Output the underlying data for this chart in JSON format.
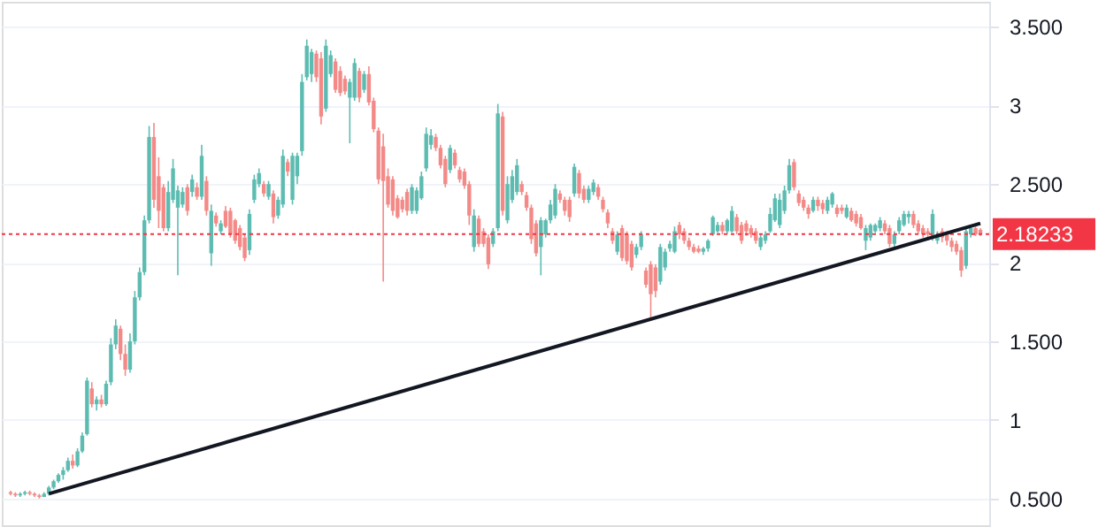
{
  "chart_data": {
    "type": "candlestick",
    "categories": [
      null,
      null,
      null,
      null,
      null,
      null,
      null,
      null,
      null,
      null,
      null,
      null,
      null,
      null,
      null,
      null,
      null,
      null,
      null,
      null,
      null,
      null,
      null,
      null,
      null,
      null,
      null,
      null,
      null,
      null,
      null,
      null,
      null,
      null,
      null,
      null,
      null,
      null,
      null,
      null,
      null,
      null,
      null,
      null,
      null,
      null,
      null,
      null,
      null,
      null,
      null,
      null,
      null,
      null,
      null,
      null,
      null,
      null,
      null,
      null,
      null,
      null,
      null,
      null,
      null,
      null,
      null,
      null,
      null,
      null,
      null,
      null,
      null,
      null,
      null,
      null,
      null,
      null,
      null,
      null,
      null,
      null,
      null,
      null,
      null,
      null,
      null,
      null,
      null,
      null,
      null,
      null,
      null,
      null,
      null,
      null,
      null,
      null,
      null,
      null,
      null,
      null,
      null,
      null,
      null,
      null,
      null,
      null,
      null,
      null,
      null,
      null,
      null,
      null,
      null,
      null,
      null,
      null,
      null,
      null,
      null,
      null,
      null,
      null,
      null,
      null,
      null,
      null,
      null,
      null,
      null,
      null,
      null,
      null,
      null,
      null,
      null,
      null,
      null,
      null,
      null,
      null,
      null,
      null,
      null,
      null,
      null,
      null,
      null,
      null,
      null,
      null,
      null,
      null,
      null,
      null,
      null,
      null,
      null,
      null,
      null,
      null,
      null,
      null,
      null,
      null,
      null,
      null,
      null,
      null,
      null,
      null,
      null,
      null,
      null,
      null,
      null,
      null,
      null,
      null,
      null,
      null,
      null,
      null,
      null,
      null,
      null,
      null,
      null,
      null,
      null,
      null,
      null,
      null,
      null,
      null,
      null,
      null,
      null,
      null,
      null,
      null,
      null,
      null
    ],
    "ohlc": [
      [
        0.54,
        0.55,
        0.52,
        0.53
      ],
      [
        0.53,
        0.54,
        0.51,
        0.52
      ],
      [
        0.52,
        0.54,
        0.51,
        0.53
      ],
      [
        0.53,
        0.55,
        0.52,
        0.54
      ],
      [
        0.54,
        0.55,
        0.52,
        0.53
      ],
      [
        0.53,
        0.54,
        0.51,
        0.52
      ],
      [
        0.52,
        0.53,
        0.5,
        0.51
      ],
      [
        0.51,
        0.54,
        0.51,
        0.53
      ],
      [
        0.53,
        0.58,
        0.52,
        0.57
      ],
      [
        0.57,
        0.62,
        0.56,
        0.61
      ],
      [
        0.61,
        0.66,
        0.6,
        0.65
      ],
      [
        0.65,
        0.7,
        0.62,
        0.68
      ],
      [
        0.68,
        0.76,
        0.67,
        0.74
      ],
      [
        0.74,
        0.78,
        0.69,
        0.71
      ],
      [
        0.71,
        0.82,
        0.7,
        0.8
      ],
      [
        0.8,
        0.92,
        0.79,
        0.9
      ],
      [
        0.91,
        1.27,
        0.9,
        1.25
      ],
      [
        1.2,
        1.24,
        1.08,
        1.1
      ],
      [
        1.1,
        1.15,
        1.06,
        1.13
      ],
      [
        1.13,
        1.16,
        1.08,
        1.1
      ],
      [
        1.1,
        1.25,
        1.09,
        1.23
      ],
      [
        1.24,
        1.52,
        1.22,
        1.48
      ],
      [
        1.48,
        1.64,
        1.45,
        1.6
      ],
      [
        1.58,
        1.6,
        1.38,
        1.42
      ],
      [
        1.42,
        1.48,
        1.28,
        1.32
      ],
      [
        1.32,
        1.55,
        1.3,
        1.5
      ],
      [
        1.5,
        1.82,
        1.48,
        1.78
      ],
      [
        1.78,
        1.97,
        1.76,
        1.94
      ],
      [
        1.94,
        2.3,
        1.92,
        2.27
      ],
      [
        2.27,
        2.87,
        2.25,
        2.8
      ],
      [
        2.8,
        2.89,
        2.35,
        2.4
      ],
      [
        2.55,
        2.67,
        2.22,
        2.33
      ],
      [
        2.48,
        2.5,
        2.2,
        2.22
      ],
      [
        2.22,
        2.52,
        2.2,
        2.45
      ],
      [
        2.4,
        2.66,
        2.38,
        2.6
      ],
      [
        2.35,
        2.49,
        1.92,
        2.46
      ],
      [
        2.37,
        2.48,
        2.35,
        2.45
      ],
      [
        2.48,
        2.5,
        2.3,
        2.33
      ],
      [
        2.45,
        2.56,
        2.42,
        2.53
      ],
      [
        2.48,
        2.51,
        2.4,
        2.42
      ],
      [
        2.42,
        2.75,
        2.4,
        2.68
      ],
      [
        2.52,
        2.55,
        2.3,
        2.33
      ],
      [
        2.06,
        2.37,
        1.98,
        2.33
      ],
      [
        2.3,
        2.32,
        2.23,
        2.25
      ],
      [
        2.2,
        2.27,
        2.18,
        2.25
      ],
      [
        2.33,
        2.36,
        2.22,
        2.23
      ],
      [
        2.33,
        2.35,
        2.16,
        2.18
      ],
      [
        2.27,
        2.28,
        2.12,
        2.14
      ],
      [
        2.22,
        2.24,
        2.08,
        2.1
      ],
      [
        2.16,
        2.18,
        2.01,
        2.03
      ],
      [
        2.08,
        2.34,
        2.05,
        2.31
      ],
      [
        2.4,
        2.56,
        2.38,
        2.53
      ],
      [
        2.5,
        2.6,
        2.48,
        2.57
      ],
      [
        2.5,
        2.52,
        2.42,
        2.44
      ],
      [
        2.42,
        2.52,
        2.4,
        2.5
      ],
      [
        2.44,
        2.46,
        2.25,
        2.29
      ],
      [
        2.3,
        2.42,
        2.28,
        2.4
      ],
      [
        2.37,
        2.72,
        2.35,
        2.68
      ],
      [
        2.64,
        2.66,
        2.55,
        2.58
      ],
      [
        2.4,
        2.7,
        2.37,
        2.68
      ],
      [
        2.55,
        2.7,
        2.5,
        2.68
      ],
      [
        2.71,
        3.2,
        2.68,
        3.15
      ],
      [
        3.18,
        3.42,
        3.16,
        3.38
      ],
      [
        3.2,
        3.36,
        3.15,
        3.34
      ],
      [
        3.33,
        3.35,
        3.15,
        3.18
      ],
      [
        3.3,
        3.34,
        2.88,
        2.93
      ],
      [
        2.98,
        3.42,
        2.96,
        3.38
      ],
      [
        3.2,
        3.35,
        3.18,
        3.32
      ],
      [
        3.28,
        3.3,
        3.08,
        3.1
      ],
      [
        3.22,
        3.25,
        3.06,
        3.08
      ],
      [
        3.17,
        3.19,
        3.07,
        3.09
      ],
      [
        3.05,
        3.17,
        2.76,
        3.15
      ],
      [
        3.05,
        3.3,
        3.03,
        3.27
      ],
      [
        3.22,
        3.24,
        3.02,
        3.05
      ],
      [
        3.1,
        3.22,
        3.08,
        3.2
      ],
      [
        3.2,
        3.25,
        3.0,
        3.02
      ],
      [
        3.03,
        3.05,
        2.83,
        2.85
      ],
      [
        2.84,
        2.86,
        2.5,
        2.53
      ],
      [
        2.74,
        2.82,
        1.88,
        2.52
      ],
      [
        2.55,
        2.6,
        2.35,
        2.37
      ],
      [
        2.53,
        2.55,
        2.3,
        2.33
      ],
      [
        2.41,
        2.43,
        2.28,
        2.29
      ],
      [
        2.4,
        2.42,
        2.32,
        2.34
      ],
      [
        2.45,
        2.47,
        2.3,
        2.33
      ],
      [
        2.33,
        2.5,
        2.31,
        2.48
      ],
      [
        2.33,
        2.48,
        2.31,
        2.46
      ],
      [
        2.41,
        2.58,
        2.4,
        2.55
      ],
      [
        2.6,
        2.86,
        2.58,
        2.82
      ],
      [
        2.75,
        2.85,
        2.72,
        2.81
      ],
      [
        2.8,
        2.82,
        2.71,
        2.73
      ],
      [
        2.73,
        2.75,
        2.6,
        2.62
      ],
      [
        2.66,
        2.68,
        2.48,
        2.5
      ],
      [
        2.59,
        2.75,
        2.57,
        2.73
      ],
      [
        2.7,
        2.72,
        2.6,
        2.62
      ],
      [
        2.59,
        2.61,
        2.51,
        2.53
      ],
      [
        2.58,
        2.6,
        2.47,
        2.49
      ],
      [
        2.5,
        2.52,
        2.24,
        2.3
      ],
      [
        2.1,
        2.34,
        2.07,
        2.3
      ],
      [
        2.28,
        2.3,
        2.1,
        2.12
      ],
      [
        2.2,
        2.22,
        2.1,
        2.12
      ],
      [
        2.16,
        2.18,
        1.96,
        1.99
      ],
      [
        2.12,
        2.22,
        2.1,
        2.2
      ],
      [
        2.22,
        3.01,
        2.2,
        2.95
      ],
      [
        2.93,
        2.96,
        2.3,
        2.33
      ],
      [
        2.27,
        2.55,
        2.25,
        2.5
      ],
      [
        2.4,
        2.59,
        2.38,
        2.55
      ],
      [
        2.45,
        2.66,
        2.43,
        2.62
      ],
      [
        2.5,
        2.52,
        2.43,
        2.45
      ],
      [
        2.43,
        2.45,
        2.33,
        2.35
      ],
      [
        2.35,
        2.37,
        2.12,
        2.15
      ],
      [
        2.25,
        2.27,
        2.04,
        2.06
      ],
      [
        2.1,
        2.29,
        1.92,
        2.27
      ],
      [
        2.18,
        2.28,
        2.16,
        2.27
      ],
      [
        2.27,
        2.4,
        2.25,
        2.37
      ],
      [
        2.3,
        2.5,
        2.28,
        2.47
      ],
      [
        2.44,
        2.46,
        2.38,
        2.4
      ],
      [
        2.4,
        2.42,
        2.3,
        2.33
      ],
      [
        2.4,
        2.42,
        2.26,
        2.29
      ],
      [
        2.44,
        2.63,
        2.42,
        2.61
      ],
      [
        2.57,
        2.59,
        2.41,
        2.44
      ],
      [
        2.47,
        2.49,
        2.38,
        2.4
      ],
      [
        2.4,
        2.49,
        2.38,
        2.47
      ],
      [
        2.45,
        2.53,
        2.43,
        2.51
      ],
      [
        2.48,
        2.5,
        2.4,
        2.42
      ],
      [
        2.4,
        2.42,
        2.32,
        2.34
      ],
      [
        2.32,
        2.34,
        2.22,
        2.25
      ],
      [
        2.2,
        2.22,
        2.12,
        2.14
      ],
      [
        2.07,
        2.2,
        2.05,
        2.18
      ],
      [
        2.22,
        2.24,
        2.01,
        2.03
      ],
      [
        2.18,
        2.2,
        1.99,
        2.01
      ],
      [
        2.12,
        2.14,
        1.95,
        1.97
      ],
      [
        2.05,
        2.12,
        2.03,
        2.1
      ],
      [
        2.1,
        2.2,
        2.08,
        2.18
      ],
      [
        1.95,
        1.97,
        1.84,
        1.86
      ],
      [
        1.99,
        2.01,
        1.64,
        1.8
      ],
      [
        1.97,
        1.99,
        1.78,
        1.82
      ],
      [
        1.88,
        2.12,
        1.86,
        2.1
      ],
      [
        1.97,
        2.09,
        1.95,
        2.07
      ],
      [
        2.09,
        2.14,
        2.07,
        2.12
      ],
      [
        2.07,
        2.23,
        2.06,
        2.2
      ],
      [
        2.24,
        2.26,
        2.15,
        2.18
      ],
      [
        2.2,
        2.22,
        2.12,
        2.14
      ],
      [
        2.14,
        2.16,
        2.08,
        2.1
      ],
      [
        2.1,
        2.12,
        2.06,
        2.07
      ],
      [
        2.09,
        2.11,
        2.06,
        2.07
      ],
      [
        2.07,
        2.1,
        2.05,
        2.09
      ],
      [
        2.09,
        2.15,
        2.07,
        2.14
      ],
      [
        2.18,
        2.3,
        2.17,
        2.29
      ],
      [
        2.2,
        2.26,
        2.19,
        2.24
      ],
      [
        2.24,
        2.26,
        2.18,
        2.2
      ],
      [
        2.2,
        2.28,
        2.18,
        2.27
      ],
      [
        2.2,
        2.36,
        2.19,
        2.33
      ],
      [
        2.29,
        2.31,
        2.18,
        2.2
      ],
      [
        2.24,
        2.26,
        2.12,
        2.14
      ],
      [
        2.25,
        2.27,
        2.17,
        2.2
      ],
      [
        2.22,
        2.24,
        2.16,
        2.18
      ],
      [
        2.2,
        2.22,
        2.12,
        2.14
      ],
      [
        2.1,
        2.18,
        2.08,
        2.16
      ],
      [
        2.14,
        2.2,
        2.12,
        2.18
      ],
      [
        2.2,
        2.35,
        2.19,
        2.31
      ],
      [
        2.27,
        2.44,
        2.26,
        2.41
      ],
      [
        2.24,
        2.44,
        2.22,
        2.4
      ],
      [
        2.33,
        2.49,
        2.31,
        2.46
      ],
      [
        2.46,
        2.66,
        2.44,
        2.62
      ],
      [
        2.64,
        2.66,
        2.46,
        2.48
      ],
      [
        2.44,
        2.46,
        2.36,
        2.38
      ],
      [
        2.4,
        2.42,
        2.33,
        2.35
      ],
      [
        2.35,
        2.37,
        2.28,
        2.31
      ],
      [
        2.33,
        2.42,
        2.32,
        2.4
      ],
      [
        2.4,
        2.42,
        2.33,
        2.36
      ],
      [
        2.38,
        2.4,
        2.31,
        2.34
      ],
      [
        2.33,
        2.42,
        2.31,
        2.4
      ],
      [
        2.37,
        2.45,
        2.35,
        2.44
      ],
      [
        2.35,
        2.37,
        2.29,
        2.31
      ],
      [
        2.35,
        2.37,
        2.31,
        2.33
      ],
      [
        2.29,
        2.37,
        2.28,
        2.35
      ],
      [
        2.33,
        2.35,
        2.26,
        2.27
      ],
      [
        2.31,
        2.33,
        2.23,
        2.25
      ],
      [
        2.29,
        2.31,
        2.21,
        2.22
      ],
      [
        2.14,
        2.24,
        2.08,
        2.22
      ],
      [
        2.16,
        2.25,
        2.14,
        2.24
      ],
      [
        2.2,
        2.25,
        2.19,
        2.24
      ],
      [
        2.22,
        2.29,
        2.2,
        2.27
      ],
      [
        2.25,
        2.27,
        2.18,
        2.2
      ],
      [
        2.22,
        2.24,
        2.1,
        2.12
      ],
      [
        2.12,
        2.2,
        2.1,
        2.18
      ],
      [
        2.2,
        2.29,
        2.18,
        2.27
      ],
      [
        2.24,
        2.33,
        2.23,
        2.31
      ],
      [
        2.29,
        2.33,
        2.25,
        2.31
      ],
      [
        2.31,
        2.33,
        2.22,
        2.24
      ],
      [
        2.25,
        2.27,
        2.18,
        2.2
      ],
      [
        2.22,
        2.24,
        2.16,
        2.18
      ],
      [
        2.2,
        2.22,
        2.16,
        2.18
      ],
      [
        2.16,
        2.34,
        2.14,
        2.31
      ],
      [
        2.14,
        2.2,
        2.12,
        2.18
      ],
      [
        2.2,
        2.22,
        2.13,
        2.16
      ],
      [
        2.18,
        2.2,
        2.11,
        2.14
      ],
      [
        2.14,
        2.16,
        2.07,
        2.1
      ],
      [
        2.12,
        2.14,
        2.05,
        2.07
      ],
      [
        2.08,
        2.1,
        1.91,
        1.95
      ],
      [
        1.98,
        2.22,
        1.96,
        2.2
      ],
      [
        2.18,
        2.23,
        2.16,
        2.22
      ],
      [
        2.22,
        2.23,
        2.17,
        2.18
      ],
      [
        2.21,
        2.22,
        2.17,
        2.18233
      ]
    ],
    "colors": [
      "#f38a87",
      "#f38a87",
      "#5dbcb1",
      "#5dbcb1",
      "#f38a87",
      "#f38a87",
      "#f38a87",
      "#5dbcb1",
      "#5dbcb1",
      "#5dbcb1",
      "#5dbcb1",
      "#5dbcb1",
      "#5dbcb1",
      "#f38a87",
      "#5dbcb1",
      "#5dbcb1",
      "#5dbcb1",
      "#f38a87",
      "#5dbcb1",
      "#f38a87",
      "#5dbcb1",
      "#5dbcb1",
      "#5dbcb1",
      "#f38a87",
      "#f38a87",
      "#5dbcb1",
      "#5dbcb1",
      "#5dbcb1",
      "#5dbcb1",
      "#5dbcb1",
      "#f38a87",
      "#f38a87",
      "#f38a87",
      "#5dbcb1",
      "#5dbcb1",
      "#5dbcb1",
      "#5dbcb1",
      "#f38a87",
      "#5dbcb1",
      "#f38a87",
      "#5dbcb1",
      "#f38a87",
      "#5dbcb1",
      "#f38a87",
      "#5dbcb1",
      "#f38a87",
      "#f38a87",
      "#f38a87",
      "#f38a87",
      "#f38a87",
      "#5dbcb1",
      "#5dbcb1",
      "#5dbcb1",
      "#f38a87",
      "#5dbcb1",
      "#f38a87",
      "#5dbcb1",
      "#5dbcb1",
      "#f38a87",
      "#5dbcb1",
      "#5dbcb1",
      "#5dbcb1",
      "#5dbcb1",
      "#5dbcb1",
      "#f38a87",
      "#f38a87",
      "#5dbcb1",
      "#5dbcb1",
      "#f38a87",
      "#f38a87",
      "#f38a87",
      "#5dbcb1",
      "#5dbcb1",
      "#f38a87",
      "#5dbcb1",
      "#f38a87",
      "#f38a87",
      "#f38a87",
      "#f38a87",
      "#f38a87",
      "#f38a87",
      "#f38a87",
      "#f38a87",
      "#f38a87",
      "#5dbcb1",
      "#5dbcb1",
      "#5dbcb1",
      "#5dbcb1",
      "#5dbcb1",
      "#f38a87",
      "#f38a87",
      "#f38a87",
      "#5dbcb1",
      "#f38a87",
      "#f38a87",
      "#f38a87",
      "#f38a87",
      "#5dbcb1",
      "#f38a87",
      "#f38a87",
      "#f38a87",
      "#5dbcb1",
      "#5dbcb1",
      "#f38a87",
      "#5dbcb1",
      "#5dbcb1",
      "#5dbcb1",
      "#f38a87",
      "#f38a87",
      "#f38a87",
      "#f38a87",
      "#5dbcb1",
      "#5dbcb1",
      "#5dbcb1",
      "#5dbcb1",
      "#f38a87",
      "#f38a87",
      "#f38a87",
      "#5dbcb1",
      "#f38a87",
      "#f38a87",
      "#5dbcb1",
      "#5dbcb1",
      "#f38a87",
      "#f38a87",
      "#f38a87",
      "#f38a87",
      "#5dbcb1",
      "#f38a87",
      "#f38a87",
      "#f38a87",
      "#5dbcb1",
      "#5dbcb1",
      "#f38a87",
      "#f38a87",
      "#f38a87",
      "#5dbcb1",
      "#5dbcb1",
      "#5dbcb1",
      "#5dbcb1",
      "#f38a87",
      "#f38a87",
      "#f38a87",
      "#f38a87",
      "#f38a87",
      "#5dbcb1",
      "#5dbcb1",
      "#5dbcb1",
      "#5dbcb1",
      "#f38a87",
      "#5dbcb1",
      "#5dbcb1",
      "#f38a87",
      "#f38a87",
      "#f38a87",
      "#f38a87",
      "#f38a87",
      "#5dbcb1",
      "#5dbcb1",
      "#5dbcb1",
      "#5dbcb1",
      "#5dbcb1",
      "#5dbcb1",
      "#5dbcb1",
      "#f38a87",
      "#f38a87",
      "#f38a87",
      "#f38a87",
      "#5dbcb1",
      "#f38a87",
      "#f38a87",
      "#5dbcb1",
      "#5dbcb1",
      "#f38a87",
      "#f38a87",
      "#5dbcb1",
      "#f38a87",
      "#f38a87",
      "#f38a87",
      "#5dbcb1",
      "#5dbcb1",
      "#5dbcb1",
      "#5dbcb1",
      "#f38a87",
      "#f38a87",
      "#5dbcb1",
      "#5dbcb1",
      "#5dbcb1",
      "#5dbcb1",
      "#f38a87",
      "#f38a87",
      "#f38a87",
      "#f38a87",
      "#5dbcb1",
      "#5dbcb1",
      "#f38a87",
      "#f38a87",
      "#f38a87",
      "#f38a87",
      "#f38a87",
      "#5dbcb1",
      "#5dbcb1",
      "#f38a87",
      "#f38a87"
    ],
    "series": [
      {
        "type": "line",
        "color": "#131722",
        "values": [
          null,
          null,
          null,
          null,
          null,
          null,
          null,
          null,
          0.53,
          null,
          null,
          null,
          null,
          null,
          null,
          null,
          null,
          null,
          null,
          null,
          null,
          null,
          null,
          null,
          null,
          null,
          null,
          null,
          null,
          null,
          null,
          null,
          null,
          null,
          null,
          null,
          null,
          null,
          null,
          null,
          null,
          null,
          null,
          null,
          null,
          null,
          null,
          null,
          null,
          null,
          null,
          null,
          null,
          null,
          null,
          null,
          null,
          null,
          null,
          null,
          null,
          null,
          null,
          null,
          null,
          null,
          null,
          null,
          null,
          null,
          null,
          null,
          null,
          null,
          null,
          null,
          null,
          null,
          null,
          null,
          null,
          null,
          null,
          null,
          null,
          null,
          null,
          null,
          null,
          null,
          null,
          null,
          null,
          null,
          null,
          null,
          null,
          null,
          null,
          null,
          null,
          null,
          null,
          null,
          null,
          null,
          null,
          null,
          null,
          null,
          null,
          null,
          null,
          null,
          null,
          null,
          null,
          null,
          null,
          null,
          null,
          null,
          null,
          null,
          null,
          null,
          null,
          null,
          null,
          null,
          null,
          null,
          null,
          null,
          null,
          null,
          null,
          null,
          null,
          null,
          null,
          null,
          null,
          null,
          null,
          null,
          null,
          null,
          null,
          null,
          null,
          null,
          null,
          null,
          null,
          null,
          null,
          null,
          null,
          null,
          null,
          null,
          null,
          null,
          null,
          null,
          null,
          null,
          null,
          null,
          null,
          null,
          null,
          null,
          null,
          null,
          null,
          null,
          null,
          null,
          null,
          null,
          null,
          null,
          null,
          null,
          null,
          null,
          null,
          null,
          null,
          null,
          null,
          null,
          null,
          null,
          null,
          null,
          null,
          null,
          null,
          null,
          null,
          2.25
        ]
      }
    ],
    "ylim": [
      0.33,
      3.66
    ],
    "yticks": [
      {
        "value": 0.5,
        "label": "0.500"
      },
      1,
      {
        "value": 1.5,
        "label": "1.500"
      },
      2,
      {
        "value": 2.5,
        "label": "2.500"
      },
      3,
      {
        "value": 3.5,
        "label": "3.500"
      }
    ],
    "ref_lines": [
      {
        "axis": "y",
        "value": 2.18233,
        "label": "2.18233",
        "color": "#f23645",
        "line_style": "dotted"
      }
    ],
    "grid": "y",
    "line_style": "solid"
  }
}
